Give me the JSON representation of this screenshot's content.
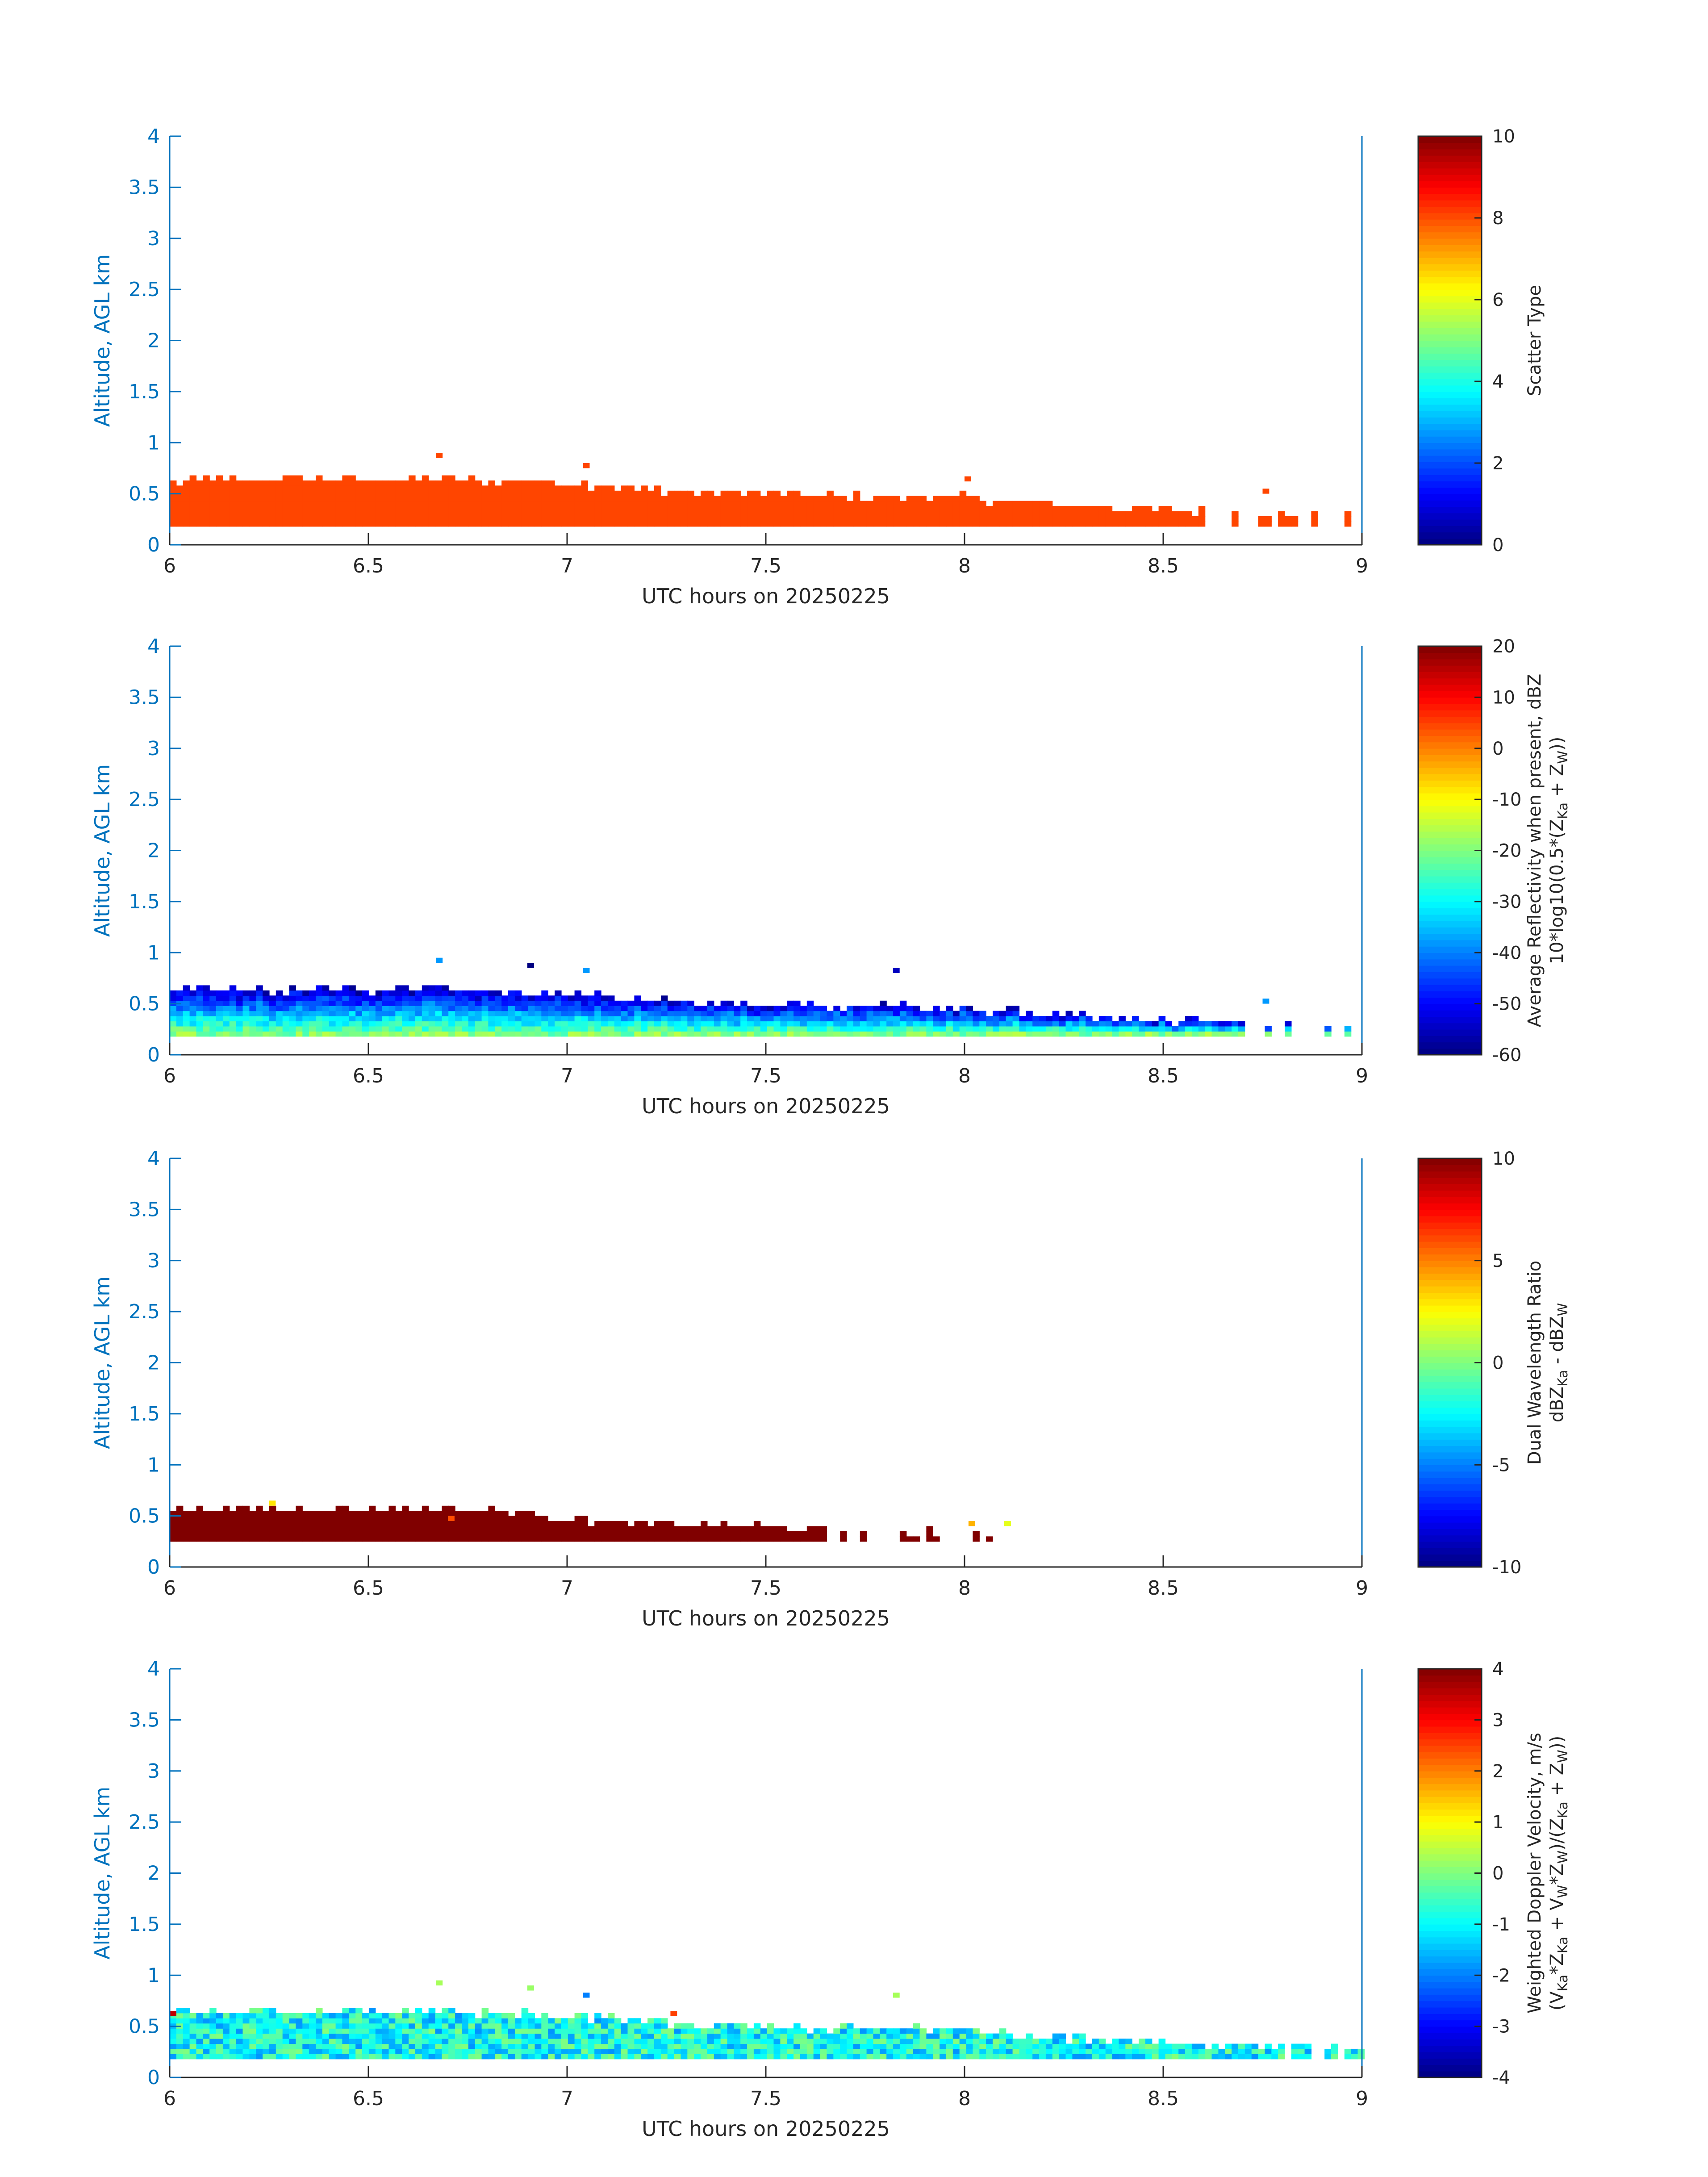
{
  "figure": {
    "date_label": "UTC hours on 20250225",
    "ylabel": "Altitude, AGL km"
  },
  "chart_data": [
    {
      "type": "heatmap",
      "title": "",
      "xlabel": "UTC hours on 20250225",
      "ylabel": "Altitude, AGL km",
      "xlim": [
        6,
        9
      ],
      "ylim": [
        0,
        4
      ],
      "xticks": [
        "6",
        "6.5",
        "7",
        "7.5",
        "8",
        "8.5",
        "9"
      ],
      "yticks": [
        "0",
        "0.5",
        "1",
        "1.5",
        "2",
        "2.5",
        "3",
        "3.5",
        "4"
      ],
      "colorbar": {
        "label": [
          "Scatter Type"
        ],
        "clim": [
          0,
          10
        ],
        "ticks": [
          "0",
          "2",
          "4",
          "6",
          "8",
          "10"
        ]
      },
      "field": "scatter_type",
      "cell_value": 8.5,
      "cell_color": "#ff4500",
      "top_profile": [
        [
          6.0,
          0.58
        ],
        [
          6.1,
          0.62
        ],
        [
          6.2,
          0.6
        ],
        [
          6.3,
          0.63
        ],
        [
          6.4,
          0.63
        ],
        [
          6.5,
          0.6
        ],
        [
          6.6,
          0.63
        ],
        [
          6.7,
          0.62
        ],
        [
          6.8,
          0.6
        ],
        [
          6.9,
          0.6
        ],
        [
          7.0,
          0.58
        ],
        [
          7.1,
          0.55
        ],
        [
          7.2,
          0.52
        ],
        [
          7.3,
          0.5
        ],
        [
          7.4,
          0.48
        ],
        [
          7.5,
          0.48
        ],
        [
          7.6,
          0.46
        ],
        [
          7.7,
          0.45
        ],
        [
          7.8,
          0.45
        ],
        [
          7.9,
          0.45
        ],
        [
          8.0,
          0.44
        ],
        [
          8.1,
          0.4
        ],
        [
          8.2,
          0.38
        ],
        [
          8.3,
          0.36
        ],
        [
          8.4,
          0.33
        ],
        [
          8.5,
          0.32
        ],
        [
          8.6,
          0.3
        ],
        [
          8.7,
          0.28
        ],
        [
          8.8,
          0.28
        ],
        [
          8.9,
          0.28
        ],
        [
          9.0,
          0.28
        ]
      ],
      "base_km": 0.18,
      "coverage": "continuous to 8.6 h, sparse thereafter",
      "outliers": [
        [
          6.67,
          0.85
        ],
        [
          7.04,
          0.75
        ],
        [
          8.0,
          0.62
        ],
        [
          8.75,
          0.5
        ]
      ]
    },
    {
      "type": "heatmap",
      "title": "",
      "xlabel": "UTC hours on 20250225",
      "ylabel": "Altitude, AGL km",
      "xlim": [
        6,
        9
      ],
      "ylim": [
        0,
        4
      ],
      "xticks": [
        "6",
        "6.5",
        "7",
        "7.5",
        "8",
        "8.5",
        "9"
      ],
      "yticks": [
        "0",
        "0.5",
        "1",
        "1.5",
        "2",
        "2.5",
        "3",
        "3.5",
        "4"
      ],
      "colorbar": {
        "label": [
          "Average Reflectivity when present, dBZ",
          "10*log10(0.5*(Z",
          "Ka",
          " + Z",
          "W",
          "))"
        ],
        "clim": [
          -60,
          20
        ],
        "ticks": [
          "-60",
          "-50",
          "-40",
          "-30",
          "-20",
          "-10",
          "0",
          "10",
          "20"
        ]
      },
      "field": "reflectivity_dBZ",
      "typical_values": {
        "near_surface": -20,
        "mid_layer": -32,
        "cloud_top": -55
      },
      "top_profile": [
        [
          6.0,
          0.62
        ],
        [
          6.1,
          0.62
        ],
        [
          6.2,
          0.6
        ],
        [
          6.3,
          0.62
        ],
        [
          6.4,
          0.62
        ],
        [
          6.5,
          0.6
        ],
        [
          6.6,
          0.62
        ],
        [
          6.7,
          0.62
        ],
        [
          6.8,
          0.6
        ],
        [
          6.9,
          0.6
        ],
        [
          7.0,
          0.58
        ],
        [
          7.1,
          0.55
        ],
        [
          7.2,
          0.52
        ],
        [
          7.3,
          0.5
        ],
        [
          7.4,
          0.48
        ],
        [
          7.5,
          0.48
        ],
        [
          7.6,
          0.46
        ],
        [
          7.7,
          0.45
        ],
        [
          7.8,
          0.45
        ],
        [
          7.9,
          0.45
        ],
        [
          8.0,
          0.44
        ],
        [
          8.1,
          0.4
        ],
        [
          8.2,
          0.38
        ],
        [
          8.3,
          0.36
        ],
        [
          8.4,
          0.33
        ],
        [
          8.5,
          0.32
        ],
        [
          8.6,
          0.3
        ],
        [
          8.7,
          0.28
        ],
        [
          8.8,
          0.28
        ],
        [
          8.9,
          0.28
        ],
        [
          9.0,
          0.28
        ]
      ],
      "base_km": 0.18,
      "outliers": [
        [
          6.67,
          0.9,
          -38
        ],
        [
          6.9,
          0.85,
          -60
        ],
        [
          7.04,
          0.8,
          -38
        ],
        [
          7.82,
          0.8,
          -55
        ],
        [
          8.75,
          0.5,
          -38
        ]
      ]
    },
    {
      "type": "heatmap",
      "title": "",
      "xlabel": "UTC hours on 20250225",
      "ylabel": "Altitude, AGL km",
      "xlim": [
        6,
        9
      ],
      "ylim": [
        0,
        4
      ],
      "xticks": [
        "6",
        "6.5",
        "7",
        "7.5",
        "8",
        "8.5",
        "9"
      ],
      "yticks": [
        "0",
        "0.5",
        "1",
        "1.5",
        "2",
        "2.5",
        "3",
        "3.5",
        "4"
      ],
      "colorbar": {
        "label": [
          "Dual Wavelength Ratio",
          "dBZ",
          "Ka",
          " - dBZ",
          "W"
        ],
        "clim": [
          -10,
          10
        ],
        "ticks": [
          "-10",
          "-5",
          "0",
          "5",
          "10"
        ]
      },
      "field": "dwr_dB",
      "cell_value": 10,
      "top_profile": [
        [
          6.0,
          0.55
        ],
        [
          6.1,
          0.55
        ],
        [
          6.2,
          0.55
        ],
        [
          6.3,
          0.55
        ],
        [
          6.4,
          0.55
        ],
        [
          6.5,
          0.55
        ],
        [
          6.6,
          0.55
        ],
        [
          6.7,
          0.55
        ],
        [
          6.8,
          0.52
        ],
        [
          6.9,
          0.5
        ],
        [
          7.0,
          0.45
        ],
        [
          7.1,
          0.42
        ],
        [
          7.2,
          0.4
        ],
        [
          7.3,
          0.38
        ],
        [
          7.4,
          0.38
        ],
        [
          7.5,
          0.38
        ],
        [
          7.6,
          0.36
        ],
        [
          7.7,
          0.34
        ],
        [
          7.8,
          0.32
        ],
        [
          7.9,
          0.32
        ],
        [
          8.0,
          0.32
        ],
        [
          8.1,
          0.32
        ]
      ],
      "base_km": 0.25,
      "coverage": "continuous to 7.65 h, sparse columns to 8.12 h",
      "outliers": [
        [
          6.25,
          0.6,
          3
        ],
        [
          6.7,
          0.45,
          6
        ],
        [
          8.01,
          0.4,
          4
        ],
        [
          8.1,
          0.4,
          2
        ]
      ]
    },
    {
      "type": "heatmap",
      "title": "",
      "xlabel": "UTC hours on 20250225",
      "ylabel": "Altitude, AGL km",
      "xlim": [
        6,
        9
      ],
      "ylim": [
        0,
        4
      ],
      "xticks": [
        "6",
        "6.5",
        "7",
        "7.5",
        "8",
        "8.5",
        "9"
      ],
      "yticks": [
        "0",
        "0.5",
        "1",
        "1.5",
        "2",
        "2.5",
        "3",
        "3.5",
        "4"
      ],
      "colorbar": {
        "label": [
          "Weighted Doppler Velocity, m/s",
          "(V",
          "Ka",
          "*Z",
          "Ka",
          " + V",
          "W",
          "*Z",
          "W",
          ")/(Z",
          "Ka",
          " + Z",
          "W",
          "))"
        ],
        "clim": [
          -4,
          4
        ],
        "ticks": [
          "-4",
          "-3",
          "-2",
          "-1",
          "0",
          "1",
          "2",
          "3",
          "4"
        ]
      },
      "field": "doppler_velocity_ms",
      "typical_values": {
        "mean": -0.9,
        "spread": 0.6
      },
      "top_profile": [
        [
          6.0,
          0.62
        ],
        [
          6.1,
          0.62
        ],
        [
          6.2,
          0.62
        ],
        [
          6.3,
          0.62
        ],
        [
          6.4,
          0.62
        ],
        [
          6.5,
          0.62
        ],
        [
          6.6,
          0.62
        ],
        [
          6.7,
          0.62
        ],
        [
          6.8,
          0.6
        ],
        [
          6.9,
          0.6
        ],
        [
          7.0,
          0.58
        ],
        [
          7.1,
          0.55
        ],
        [
          7.2,
          0.52
        ],
        [
          7.3,
          0.5
        ],
        [
          7.4,
          0.48
        ],
        [
          7.5,
          0.48
        ],
        [
          7.6,
          0.46
        ],
        [
          7.7,
          0.45
        ],
        [
          7.8,
          0.45
        ],
        [
          7.9,
          0.45
        ],
        [
          8.0,
          0.44
        ],
        [
          8.1,
          0.4
        ],
        [
          8.2,
          0.38
        ],
        [
          8.3,
          0.36
        ],
        [
          8.4,
          0.33
        ],
        [
          8.5,
          0.32
        ],
        [
          8.6,
          0.3
        ],
        [
          8.7,
          0.28
        ],
        [
          8.8,
          0.28
        ],
        [
          8.9,
          0.28
        ],
        [
          9.0,
          0.28
        ]
      ],
      "base_km": 0.18,
      "outliers": [
        [
          6.67,
          0.9,
          0.3
        ],
        [
          6.9,
          0.85,
          0.2
        ],
        [
          7.04,
          0.78,
          -2
        ],
        [
          7.82,
          0.78,
          0.3
        ],
        [
          6.0,
          0.6,
          3.5
        ],
        [
          7.26,
          0.6,
          2.5
        ]
      ]
    }
  ]
}
